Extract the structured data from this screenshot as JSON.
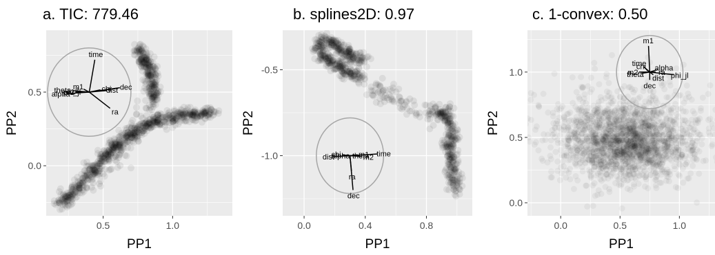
{
  "chart_data": [
    {
      "type": "scatter",
      "title": "a. TIC: 779.46",
      "xlabel": "PP1",
      "ylabel": "PP2",
      "xlim": [
        0.09,
        1.43
      ],
      "ylim": [
        -0.34,
        0.92
      ],
      "x_ticks": [
        0.5,
        1.0
      ],
      "x_tick_labels": [
        "0.5",
        "1.0"
      ],
      "y_ticks": [
        0.0,
        0.5
      ],
      "y_tick_labels": [
        "0.0",
        "0.5"
      ],
      "grid": true,
      "point_clusters": [
        {
          "shape": "curve",
          "points": [
            [
              0.2,
              -0.26
            ],
            [
              0.27,
              -0.19
            ],
            [
              0.35,
              -0.12
            ],
            [
              0.42,
              -0.04
            ],
            [
              0.49,
              0.03
            ],
            [
              0.56,
              0.1
            ],
            [
              0.62,
              0.16
            ],
            [
              0.68,
              0.2
            ],
            [
              0.75,
              0.23
            ]
          ],
          "spread": 0.02,
          "count": 420
        },
        {
          "shape": "curve",
          "points": [
            [
              0.75,
              0.23
            ],
            [
              0.8,
              0.27
            ],
            [
              0.86,
              0.3
            ],
            [
              0.92,
              0.32
            ],
            [
              1.0,
              0.33
            ],
            [
              1.08,
              0.34
            ],
            [
              1.16,
              0.355
            ],
            [
              1.24,
              0.36
            ],
            [
              1.3,
              0.35
            ]
          ],
          "spread": 0.02,
          "count": 320
        },
        {
          "shape": "curve",
          "points": [
            [
              0.75,
              0.79
            ],
            [
              0.79,
              0.74
            ],
            [
              0.82,
              0.68
            ],
            [
              0.84,
              0.62
            ],
            [
              0.85,
              0.56
            ],
            [
              0.86,
              0.5
            ],
            [
              0.87,
              0.45
            ]
          ],
          "spread": 0.02,
          "count": 260
        },
        {
          "shape": "curve",
          "points": [
            [
              0.84,
              0.45
            ],
            [
              0.79,
              0.38
            ],
            [
              0.74,
              0.3
            ],
            [
              0.69,
              0.2
            ],
            [
              0.63,
              0.1
            ],
            [
              0.56,
              0.0
            ],
            [
              0.48,
              -0.1
            ]
          ],
          "spread": 0.025,
          "count": 70
        }
      ],
      "axes_circle": {
        "center": [
          0.4,
          0.5
        ],
        "radius": 0.3,
        "variables": [
          {
            "name": "time",
            "end": [
              0.44,
              0.72
            ]
          },
          {
            "name": "dec",
            "end": [
              0.62,
              0.53
            ]
          },
          {
            "name": "ra",
            "end": [
              0.55,
              0.39
            ]
          },
          {
            "name": "theta_il",
            "end": [
              0.28,
              0.51
            ]
          },
          {
            "name": "alpha",
            "end": [
              0.24,
              0.49
            ]
          },
          {
            "name": "m1",
            "end": [
              0.36,
              0.52
            ]
          },
          {
            "name": "chi",
            "end": [
              0.48,
              0.515
            ]
          },
          {
            "name": "dist",
            "end": [
              0.52,
              0.51
            ]
          },
          {
            "name": "phi_jl",
            "end": [
              0.32,
              0.5
            ]
          },
          {
            "name": "m2",
            "end": [
              0.3,
              0.5
            ]
          }
        ]
      }
    },
    {
      "type": "scatter",
      "title": "b. splines2D: 0.97",
      "xlabel": "PP1",
      "ylabel": "PP2",
      "xlim": [
        -0.14,
        1.1
      ],
      "ylim": [
        -1.35,
        -0.27
      ],
      "x_ticks": [
        0.0,
        0.4,
        0.8
      ],
      "x_tick_labels": [
        "0.0",
        "0.4",
        "0.8"
      ],
      "y_ticks": [
        -1.0,
        -0.5
      ],
      "y_tick_labels": [
        "-1.0",
        "-0.5"
      ],
      "grid": true,
      "point_clusters": [
        {
          "shape": "curve",
          "points": [
            [
              0.38,
              -0.55
            ],
            [
              0.3,
              -0.52
            ],
            [
              0.22,
              -0.48
            ],
            [
              0.15,
              -0.44
            ],
            [
              0.11,
              -0.4
            ],
            [
              0.09,
              -0.36
            ],
            [
              0.12,
              -0.33
            ],
            [
              0.18,
              -0.34
            ],
            [
              0.25,
              -0.38
            ],
            [
              0.33,
              -0.42
            ],
            [
              0.4,
              -0.45
            ]
          ],
          "spread": 0.018,
          "count": 420
        },
        {
          "shape": "curve",
          "points": [
            [
              0.38,
              -0.55
            ],
            [
              0.5,
              -0.62
            ],
            [
              0.6,
              -0.68
            ],
            [
              0.7,
              -0.72
            ],
            [
              0.8,
              -0.75
            ],
            [
              0.87,
              -0.77
            ]
          ],
          "spread": 0.03,
          "count": 90
        },
        {
          "shape": "curve",
          "points": [
            [
              0.86,
              -0.73
            ],
            [
              0.93,
              -0.76
            ],
            [
              0.97,
              -0.85
            ],
            [
              0.95,
              -0.96
            ],
            [
              0.97,
              -1.07
            ],
            [
              0.98,
              -1.15
            ],
            [
              0.99,
              -1.2
            ]
          ],
          "spread": 0.02,
          "count": 300
        }
      ],
      "axes_circle": {
        "center": [
          0.3,
          -1.0
        ],
        "radius": 0.22,
        "variables": [
          {
            "name": "time",
            "end": [
              0.48,
              -0.99
            ]
          },
          {
            "name": "ra",
            "end": [
              0.31,
              -1.09
            ]
          },
          {
            "name": "dec",
            "end": [
              0.32,
              -1.2
            ]
          },
          {
            "name": "chi",
            "end": [
              0.25,
              -0.995
            ]
          },
          {
            "name": "dist",
            "end": [
              0.2,
              -1.005
            ]
          },
          {
            "name": "alpha",
            "end": [
              0.28,
              -1.0
            ]
          },
          {
            "name": "m1",
            "end": [
              0.35,
              -0.995
            ]
          },
          {
            "name": "m2",
            "end": [
              0.38,
              -1.005
            ]
          },
          {
            "name": "theta",
            "end": [
              0.33,
              -1.0
            ]
          }
        ]
      }
    },
    {
      "type": "scatter",
      "title": "c. 1-convex: 0.50",
      "xlabel": "PP1",
      "ylabel": "PP2",
      "xlim": [
        -0.28,
        1.3
      ],
      "ylim": [
        -0.1,
        1.32
      ],
      "x_ticks": [
        0.0,
        0.5,
        1.0
      ],
      "x_tick_labels": [
        "0.0",
        "0.5",
        "1.0"
      ],
      "y_ticks": [
        0.0,
        0.5,
        1.0
      ],
      "y_tick_labels": [
        "0.0",
        "0.5",
        "1.0"
      ],
      "grid": true,
      "point_clusters": [
        {
          "shape": "blob",
          "center": [
            0.55,
            0.44
          ],
          "spread": [
            0.27,
            0.14
          ],
          "count": 1600
        },
        {
          "shape": "blob",
          "center": [
            0.6,
            0.62
          ],
          "spread": [
            0.35,
            0.18
          ],
          "count": 500
        }
      ],
      "axes_circle": {
        "center": [
          0.75,
          1.0
        ],
        "radius": 0.28,
        "variables": [
          {
            "name": "m1",
            "end": [
              0.74,
              1.2
            ]
          },
          {
            "name": "dec",
            "end": [
              0.75,
              0.94
            ]
          },
          {
            "name": "phi_jl",
            "end": [
              0.95,
              0.98
            ]
          },
          {
            "name": "chi",
            "end": [
              0.72,
              1.02
            ]
          },
          {
            "name": "alpha",
            "end": [
              0.82,
              1.02
            ]
          },
          {
            "name": "theta",
            "end": [
              0.68,
              0.99
            ]
          },
          {
            "name": "dist",
            "end": [
              0.78,
              0.98
            ]
          },
          {
            "name": "time",
            "end": [
              0.7,
              1.04
            ]
          },
          {
            "name": "ra",
            "end": [
              0.8,
              1.0
            ]
          },
          {
            "name": "m2",
            "end": [
              0.66,
              1.0
            ]
          }
        ]
      }
    }
  ]
}
